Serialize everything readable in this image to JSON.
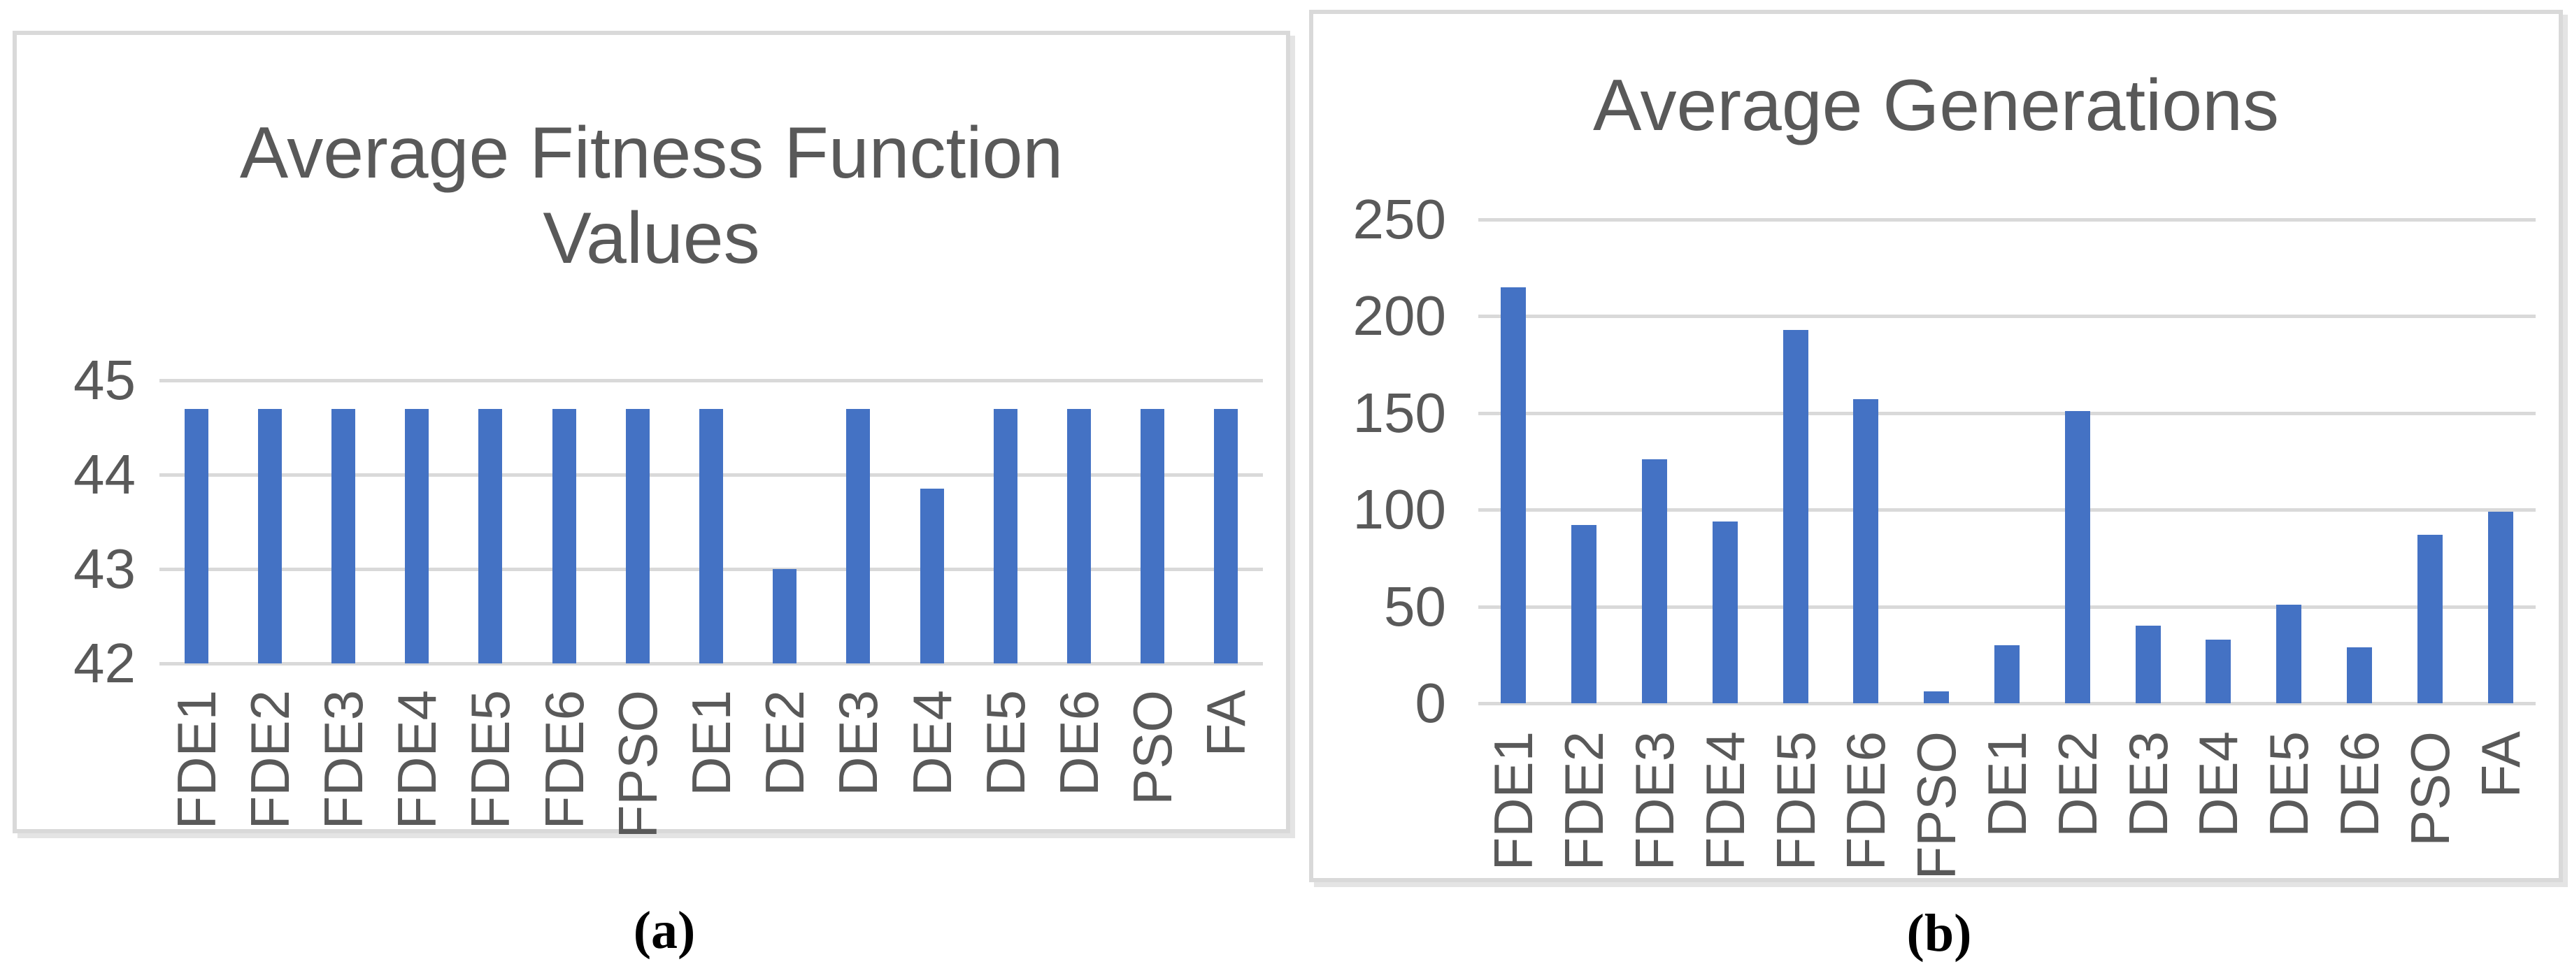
{
  "page": {
    "background": "#ffffff"
  },
  "chart_data": [
    {
      "type": "bar",
      "panel_caption": "(a)",
      "title": "Average Fitness Function Values",
      "title_lines": [
        "Average Fitness Function",
        "Values"
      ],
      "categories": [
        "FDE1",
        "FDE2",
        "FDE3",
        "FDE4",
        "FDE5",
        "FDE6",
        "FPSO",
        "DE1",
        "DE2",
        "DE3",
        "DE4",
        "DE5",
        "DE6",
        "PSO",
        "FA"
      ],
      "values": [
        44.7,
        44.7,
        44.7,
        44.7,
        44.7,
        44.7,
        44.7,
        44.7,
        43.0,
        44.7,
        43.85,
        44.7,
        44.7,
        44.7,
        44.7
      ],
      "ylim": [
        42,
        45
      ],
      "yticks": [
        42,
        43,
        44,
        45
      ],
      "xlabel": "",
      "ylabel": "",
      "grid": true,
      "legend": "none",
      "bar_color": "#4472C4",
      "grid_color": "#d9d9d9",
      "text_color": "#595959"
    },
    {
      "type": "bar",
      "panel_caption": "(b)",
      "title": "Average Generations",
      "title_lines": [
        "Average Generations"
      ],
      "categories": [
        "FDE1",
        "FDE2",
        "FDE3",
        "FDE4",
        "FDE5",
        "FDE6",
        "FPSO",
        "DE1",
        "DE2",
        "DE3",
        "DE4",
        "DE5",
        "DE6",
        "PSO",
        "FA"
      ],
      "values": [
        215,
        92,
        126,
        94,
        193,
        157,
        6,
        30,
        151,
        40,
        33,
        51,
        29,
        87,
        99
      ],
      "ylim": [
        0,
        250
      ],
      "yticks": [
        0,
        50,
        100,
        150,
        200,
        250
      ],
      "xlabel": "",
      "ylabel": "",
      "grid": true,
      "legend": "none",
      "bar_color": "#4472C4",
      "grid_color": "#d9d9d9",
      "text_color": "#595959"
    }
  ]
}
